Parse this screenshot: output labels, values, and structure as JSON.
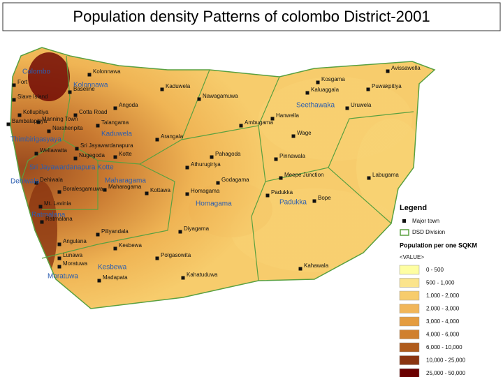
{
  "title": "Population density Patterns of colombo District-2001",
  "towns": [
    "Kolonnawa",
    "Baseline",
    "Kaduwela",
    "Nawagamuwa",
    "Angoda",
    "Cotta Road",
    "Talangama",
    "Manning Town",
    "Narahenpita",
    "Bambalapitiya",
    "Kollupitiya",
    "Slave Island",
    "Fort",
    "Wellawatta",
    "Nugegoda",
    "Kotte",
    "Sri Jayawardanapura",
    "Arangala",
    "Dehiwala",
    "Maharagama",
    "Kottawa",
    "Boralesgamuwa",
    "Mt. Lavinia",
    "Ratmalana",
    "Piliyandala",
    "Kesbewa",
    "Angulana",
    "Lunawa",
    "Moratuwa",
    "Madapata",
    "Polgasowita",
    "Diyagama",
    "Homagama",
    "Godagama",
    "Athurugiriya",
    "Pahagoda",
    "Hanwella",
    "Ambugama",
    "Wage",
    "Pinnawala",
    "Meepe Junction",
    "Padukka",
    "Bope",
    "Labugama",
    "Kosgama",
    "Kaluaggala",
    "Avissawella",
    "Puwakpitiya",
    "Uruwela",
    "Kahawala",
    "Kahatuduwa"
  ],
  "divisions": [
    "Colombo",
    "Kolonnawa",
    "Kaduwela",
    "Thimbirigasyaya",
    "Sri Jayawardanapura Kotte",
    "Dehiwala",
    "Maharagama",
    "Homagama",
    "Padukka",
    "Ratmalana",
    "Kesbewa",
    "Moratuwa",
    "Seethawaka"
  ],
  "legend": {
    "title": "Legend",
    "symbols": [
      "Major town",
      "DSD Division"
    ],
    "density_title": "Population per one SQKM",
    "field": "<VALUE>",
    "classes": [
      {
        "label": "0 - 500",
        "color": "#fefea2"
      },
      {
        "label": "500 - 1,000",
        "color": "#fbe48c"
      },
      {
        "label": "1,000 - 2,000",
        "color": "#f7cc6c"
      },
      {
        "label": "2,000 - 3,000",
        "color": "#f1b65a"
      },
      {
        "label": "3,000 - 4,000",
        "color": "#e49c40"
      },
      {
        "label": "4,000 - 6,000",
        "color": "#d0802e"
      },
      {
        "label": "6,000 - 10,000",
        "color": "#b05c1c"
      },
      {
        "label": "10,000 - 25,000",
        "color": "#8a3410"
      },
      {
        "label": "25,000 - 50,000",
        "color": "#6a0000"
      }
    ]
  }
}
